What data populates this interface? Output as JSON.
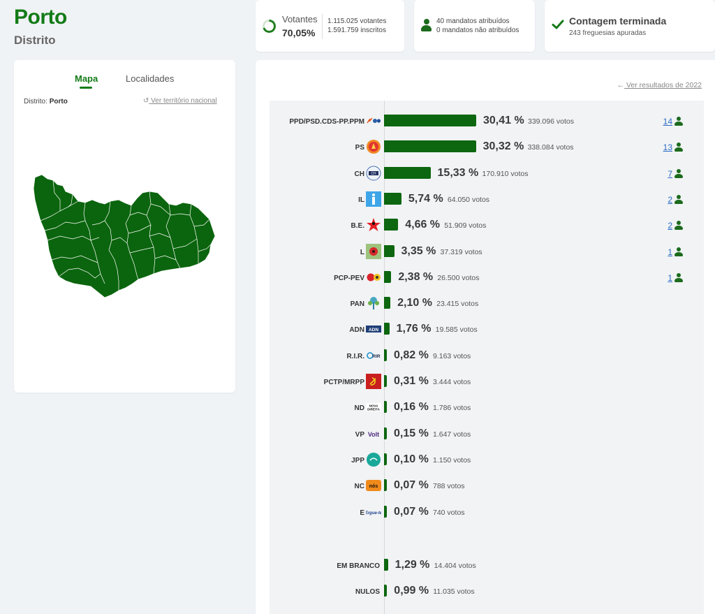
{
  "header": {
    "title": "Porto",
    "subtitle": "Distrito"
  },
  "votantes": {
    "label": "Votantes",
    "percent": "70,05%",
    "percent_value": 70.05,
    "votantes_text": "1.115.025 votantes",
    "inscritos_text": "1.591.759 inscritos"
  },
  "mandatos": {
    "atribuidos": "40 mandatos atribuídos",
    "nao_atribuidos": "0 mandatos não atribuídos"
  },
  "contagem": {
    "title": "Contagem terminada",
    "sub": "243 freguesias apuradas"
  },
  "map_panel": {
    "tab_map": "Mapa",
    "tab_local": "Localidades",
    "distrito_label": "Distrito:",
    "distrito_value": "Porto",
    "ver_nacional": "Ver território nacional"
  },
  "results": {
    "ver_2022": "Ver resultados de 2022",
    "parties": [
      {
        "name": "PPD/PSD.CDS-PP.PPM",
        "pct": "30,41 %",
        "value": 30.41,
        "votes": "339.096 votos",
        "seats": "14",
        "logo": "ad-logo"
      },
      {
        "name": "PS",
        "pct": "30,32 %",
        "value": 30.32,
        "votes": "338.084 votos",
        "seats": "13",
        "logo": "ps-logo"
      },
      {
        "name": "CH",
        "pct": "15,33 %",
        "value": 15.33,
        "votes": "170.910 votos",
        "seats": "7",
        "logo": "chega-logo"
      },
      {
        "name": "IL",
        "pct": "5,74 %",
        "value": 5.74,
        "votes": "64.050 votos",
        "seats": "2",
        "logo": "il-logo"
      },
      {
        "name": "B.E.",
        "pct": "4,66 %",
        "value": 4.66,
        "votes": "51.909 votos",
        "seats": "2",
        "logo": "be-logo"
      },
      {
        "name": "L",
        "pct": "3,35 %",
        "value": 3.35,
        "votes": "37.319 votos",
        "seats": "1",
        "logo": "livre-logo"
      },
      {
        "name": "PCP-PEV",
        "pct": "2,38 %",
        "value": 2.38,
        "votes": "26.500 votos",
        "seats": "1",
        "logo": "cdu-logo"
      },
      {
        "name": "PAN",
        "pct": "2,10 %",
        "value": 2.1,
        "votes": "23.415 votos",
        "seats": "",
        "logo": "pan-logo"
      },
      {
        "name": "ADN",
        "pct": "1,76 %",
        "value": 1.76,
        "votes": "19.585 votos",
        "seats": "",
        "logo": "adn-logo"
      },
      {
        "name": "R.I.R.",
        "pct": "0,82 %",
        "value": 0.82,
        "votes": "9.163 votos",
        "seats": "",
        "logo": "rir-logo"
      },
      {
        "name": "PCTP/MRPP",
        "pct": "0,31 %",
        "value": 0.31,
        "votes": "3.444 votos",
        "seats": "",
        "logo": "mrpp-logo"
      },
      {
        "name": "ND",
        "pct": "0,16 %",
        "value": 0.16,
        "votes": "1.786 votos",
        "seats": "",
        "logo": "nd-logo"
      },
      {
        "name": "VP",
        "pct": "0,15 %",
        "value": 0.15,
        "votes": "1.647 votos",
        "seats": "",
        "logo": "volt-logo"
      },
      {
        "name": "JPP",
        "pct": "0,10 %",
        "value": 0.1,
        "votes": "1.150 votos",
        "seats": "",
        "logo": "jpp-logo"
      },
      {
        "name": "NC",
        "pct": "0,07 %",
        "value": 0.07,
        "votes": "788 votos",
        "seats": "",
        "logo": "nc-logo"
      },
      {
        "name": "E",
        "pct": "0,07 %",
        "value": 0.07,
        "votes": "740 votos",
        "seats": "",
        "logo": "ergue-te-logo"
      }
    ],
    "others": [
      {
        "name": "EM BRANCO",
        "pct": "1,29 %",
        "value": 1.29,
        "votes": "14.404 votos"
      },
      {
        "name": "NULOS",
        "pct": "0,99 %",
        "value": 0.99,
        "votes": "11.035 votos"
      }
    ]
  },
  "colors": {
    "accent": "#137b17",
    "bar": "#0d6610",
    "link": "#2c6bc4"
  }
}
